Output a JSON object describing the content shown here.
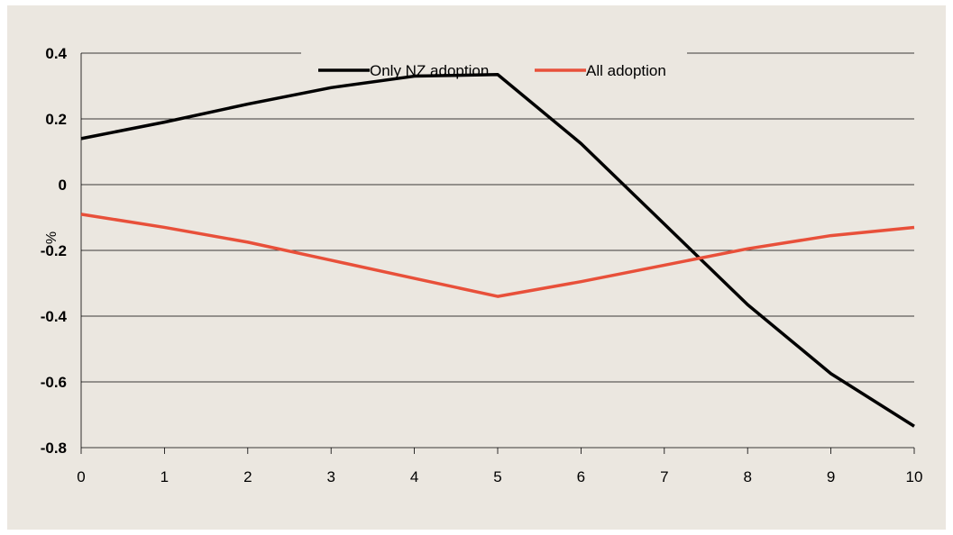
{
  "chart_data": {
    "type": "line",
    "x": [
      0,
      1,
      2,
      3,
      4,
      5,
      6,
      7,
      8,
      9,
      10
    ],
    "series": [
      {
        "name": "Only NZ adoption",
        "color": "#000000",
        "values": [
          0.14,
          0.19,
          0.245,
          0.295,
          0.33,
          0.335,
          0.125,
          -0.12,
          -0.365,
          -0.575,
          -0.735
        ]
      },
      {
        "name": "All adoption",
        "color": "#e8503a",
        "values": [
          -0.09,
          -0.13,
          -0.175,
          -0.23,
          -0.285,
          -0.34,
          -0.295,
          -0.245,
          -0.195,
          -0.155,
          -0.13
        ]
      }
    ],
    "xlabel": "",
    "ylabel": "%",
    "xticks": [
      "0",
      "1",
      "2",
      "3",
      "4",
      "5",
      "6",
      "7",
      "8",
      "9",
      "10"
    ],
    "yticks": [
      "0.4",
      "0.2",
      "0",
      "-0.2",
      "-0.4",
      "-0.6",
      "-0.8"
    ],
    "ytick_values": [
      0.4,
      0.2,
      0,
      -0.2,
      -0.4,
      -0.6,
      -0.8
    ],
    "xlim": [
      0,
      10
    ],
    "ylim": [
      -0.8,
      0.4
    ],
    "grid": "horizontal",
    "legend_position": "top-center",
    "background": "#ebe7e0"
  }
}
